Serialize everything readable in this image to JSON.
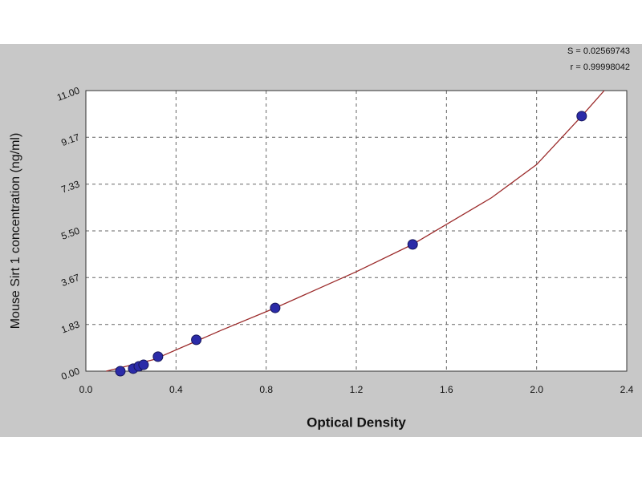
{
  "chart_data": {
    "type": "scatter",
    "annotations": [
      "S = 0.02569743",
      "r = 0.99998042"
    ],
    "xlabel": "Optical Density",
    "ylabel": "Mouse Sirt 1 concentration (ng/ml)",
    "series": [
      {
        "color": "#2b2ba8",
        "x": [
          0.153,
          0.21,
          0.235,
          0.256,
          0.32,
          0.49,
          0.84,
          1.45,
          2.2
        ],
        "values": [
          0,
          0.1,
          0.19,
          0.25,
          0.57,
          1.23,
          2.48,
          4.97,
          10.0
        ]
      }
    ],
    "curve": {
      "color": "#9b2a2a",
      "x": [
        0.09,
        0.3,
        0.6,
        0.84,
        1.2,
        1.45,
        1.8,
        2.0,
        2.2,
        2.3
      ],
      "values": [
        0,
        0.45,
        1.6,
        2.48,
        3.9,
        4.97,
        6.8,
        8.1,
        10.0,
        11.0
      ]
    },
    "xlim": [
      0,
      2.4
    ],
    "xticks": [
      {
        "value": 0,
        "label": "0.0"
      },
      0.4,
      0.8,
      1.2,
      1.6,
      {
        "value": 2,
        "label": "2.0"
      },
      2.4
    ],
    "ylim": [
      0,
      11
    ],
    "yticks": [
      {
        "value": 0,
        "label": "0.00"
      },
      {
        "value": 1.83,
        "label": "1.83"
      },
      {
        "value": 3.67,
        "label": "3.67"
      },
      {
        "value": 5.5,
        "label": "5.50"
      },
      {
        "value": 7.33,
        "label": "7.33"
      },
      {
        "value": 9.17,
        "label": "9.17"
      },
      {
        "value": 11,
        "label": "11.00"
      }
    ],
    "grid": true
  }
}
